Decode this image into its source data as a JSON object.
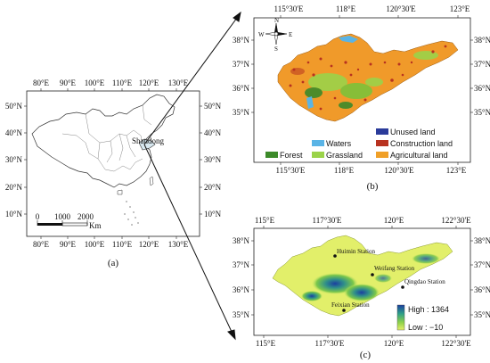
{
  "panel_a": {
    "caption": "(a)",
    "top_ticks": [
      "80°E",
      "90°E",
      "100°E",
      "110°E",
      "120°E",
      "130°E"
    ],
    "bottom_ticks": [
      "80°E",
      "90°E",
      "100°E",
      "110°E",
      "120°E",
      "130°E"
    ],
    "left_ticks": [
      "50°N",
      "40°N",
      "30°N",
      "20°N",
      "10°N"
    ],
    "right_ticks": [
      "50°N",
      "40°N",
      "30°N",
      "20°N",
      "10°N"
    ],
    "province_label": "Shandong",
    "scale_values": [
      "0",
      "1000",
      "2000"
    ],
    "scale_unit": "Km"
  },
  "panel_b": {
    "caption": "(b)",
    "top_ticks": [
      "115°30'E",
      "118°E",
      "120°30'E",
      "123°E"
    ],
    "bottom_ticks": [
      "115°30'E",
      "118°E",
      "120°30'E",
      "123°E"
    ],
    "left_ticks": [
      "38°N",
      "37°N",
      "36°N",
      "35°N"
    ],
    "right_ticks": [
      "38°N",
      "37°N",
      "36°N",
      "35°N"
    ],
    "compass": {
      "n": "N",
      "s": "S",
      "e": "E",
      "w": "W"
    },
    "legend": [
      {
        "label": "Forest",
        "color": "#3c8a2a"
      },
      {
        "label": "Waters",
        "color": "#5ab4e6"
      },
      {
        "label": "Grassland",
        "color": "#9bd34a"
      },
      {
        "label": "Unused land",
        "color": "#2a3b9a"
      },
      {
        "label": "Construction land",
        "color": "#b83220"
      },
      {
        "label": "Agricultural land",
        "color": "#f0a028"
      }
    ]
  },
  "panel_c": {
    "caption": "(c)",
    "top_ticks": [
      "115°E",
      "117°30'E",
      "120°E",
      "122°30'E"
    ],
    "bottom_ticks": [
      "115°E",
      "117°30'E",
      "120°E",
      "122°30'E"
    ],
    "left_ticks": [
      "38°N",
      "37°N",
      "36°N",
      "35°N"
    ],
    "right_ticks": [
      "38°N",
      "37°N",
      "36°N",
      "35°N"
    ],
    "stations": [
      "Huimin Station",
      "Weifang Station",
      "Qingdao Station",
      "Feixian Station"
    ],
    "legend_high": "High : 1364",
    "legend_low": "Low : −10"
  }
}
